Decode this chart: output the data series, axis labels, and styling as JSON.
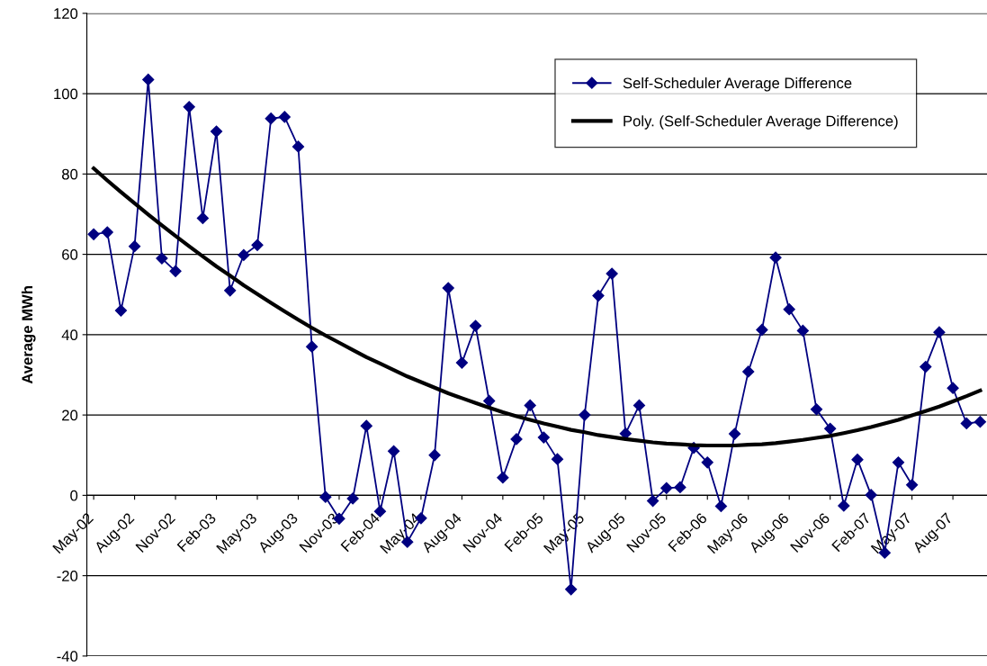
{
  "chart_data": {
    "type": "line",
    "ylabel": "Average MWh",
    "categories": [
      "May-02",
      null,
      null,
      "Aug-02",
      null,
      null,
      "Nov-02",
      null,
      null,
      "Feb-03",
      null,
      null,
      "May-03",
      null,
      null,
      "Aug-03",
      null,
      null,
      "Nov-03",
      null,
      null,
      "Feb-04",
      null,
      null,
      "May-04",
      null,
      null,
      "Aug-04",
      null,
      null,
      "Nov-04",
      null,
      null,
      "Feb-05",
      null,
      null,
      "May-05",
      null,
      null,
      "Aug-05",
      null,
      null,
      "Nov-05",
      null,
      null,
      "Feb-06",
      null,
      null,
      "May-06",
      null,
      null,
      "Aug-06",
      null,
      null,
      "Nov-06",
      null,
      null,
      "Feb-07",
      null,
      null,
      "May-07",
      null,
      null,
      "Aug-07",
      null,
      null
    ],
    "series": [
      {
        "name": "Self-Scheduler Average Difference",
        "color": "#000080",
        "marker": "diamond",
        "values": [
          65,
          65.5,
          46,
          62,
          103.5,
          59,
          55.8,
          96.7,
          69,
          90.6,
          51,
          59.8,
          62.3,
          93.8,
          94.2,
          86.8,
          37,
          -0.4,
          -5.8,
          -0.8,
          17.3,
          -4,
          11,
          -11.6,
          -5.7,
          10,
          51.6,
          33,
          42.2,
          23.5,
          4.4,
          14,
          22.4,
          14.4,
          9,
          -23.4,
          20,
          49.7,
          55.2,
          15.4,
          22.4,
          -1.4,
          1.8,
          2,
          11.8,
          8.2,
          -2.7,
          15.3,
          30.8,
          41.2,
          59.2,
          46.3,
          41,
          21.4,
          16.6,
          -2.6,
          8.9,
          0.1,
          -14.3,
          8.2,
          2.6,
          32,
          40.6,
          26.7,
          17.9,
          18.3
        ]
      },
      {
        "name": "Poly. (Self-Scheduler Average Difference)",
        "color": "#000000",
        "marker": "none",
        "values": [
          81.4,
          78.4,
          75.5,
          72.7,
          69.9,
          67.2,
          64.6,
          62.0,
          59.5,
          57.0,
          54.7,
          52.3,
          50.1,
          47.9,
          45.8,
          43.7,
          41.7,
          39.8,
          38.0,
          36.2,
          34.4,
          32.8,
          31.2,
          29.6,
          28.2,
          26.8,
          25.4,
          24.2,
          23.0,
          21.8,
          20.7,
          19.7,
          18.8,
          17.9,
          17.1,
          16.3,
          15.7,
          15.0,
          14.5,
          14.0,
          13.6,
          13.2,
          12.9,
          12.7,
          12.5,
          12.4,
          12.4,
          12.4,
          12.6,
          12.7,
          13.0,
          13.4,
          13.8,
          14.3,
          14.8,
          15.5,
          16.2,
          17.0,
          17.9,
          18.8,
          19.9,
          21.0,
          22.1,
          23.4,
          24.7,
          26.1
        ]
      }
    ],
    "ylim": [
      -40,
      120
    ],
    "yticks": [
      -40,
      -20,
      0,
      20,
      40,
      60,
      80,
      100,
      120
    ],
    "grid": "y",
    "legend": "top right",
    "line_style": "solid"
  }
}
